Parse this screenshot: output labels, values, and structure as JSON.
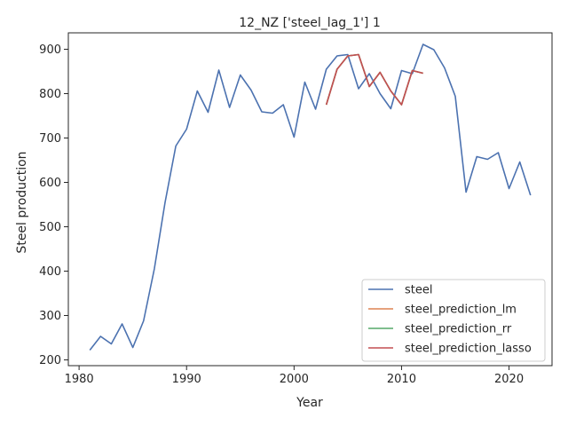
{
  "chart_data": {
    "type": "line",
    "title": "12_NZ ['steel_lag_1'] 1",
    "xlabel": "Year",
    "ylabel": "Steel production",
    "xlim": [
      1979,
      2024
    ],
    "ylim": [
      187,
      937
    ],
    "xticks": [
      1980,
      1990,
      2000,
      2010,
      2020
    ],
    "yticks": [
      200,
      300,
      400,
      500,
      600,
      700,
      800,
      900
    ],
    "grid": false,
    "legend_position": "lower right",
    "series": [
      {
        "name": "steel",
        "color": "#4c72b0",
        "x": [
          1981,
          1982,
          1983,
          1984,
          1985,
          1986,
          1987,
          1988,
          1989,
          1990,
          1991,
          1992,
          1993,
          1994,
          1995,
          1996,
          1997,
          1998,
          1999,
          2000,
          2001,
          2002,
          2003,
          2004,
          2005,
          2006,
          2007,
          2008,
          2009,
          2010,
          2011,
          2012,
          2013,
          2014,
          2015,
          2016,
          2017,
          2018,
          2019,
          2020,
          2021,
          2022
        ],
        "y": [
          222,
          253,
          236,
          281,
          228,
          288,
          405,
          555,
          682,
          720,
          806,
          758,
          853,
          769,
          842,
          808,
          759,
          756,
          775,
          702,
          826,
          765,
          855,
          885,
          888,
          811,
          845,
          800,
          766,
          852,
          845,
          911,
          899,
          858,
          794,
          578,
          658,
          652,
          667,
          586,
          646,
          571
        ]
      },
      {
        "name": "steel_prediction_lm",
        "color": "#dd8452",
        "x": [
          2003,
          2004,
          2005,
          2006,
          2007,
          2008,
          2009,
          2010,
          2011,
          2012
        ],
        "y": [
          775,
          855,
          885,
          888,
          816,
          848,
          806,
          775,
          852,
          846
        ]
      },
      {
        "name": "steel_prediction_rr",
        "color": "#55a868",
        "x": [
          2003,
          2004,
          2005,
          2006,
          2007,
          2008,
          2009,
          2010,
          2011,
          2012
        ],
        "y": [
          775,
          855,
          885,
          888,
          816,
          848,
          806,
          775,
          852,
          846
        ]
      },
      {
        "name": "steel_prediction_lasso",
        "color": "#c44e52",
        "x": [
          2003,
          2004,
          2005,
          2006,
          2007,
          2008,
          2009,
          2010,
          2011,
          2012
        ],
        "y": [
          775,
          855,
          885,
          888,
          816,
          848,
          806,
          775,
          852,
          846
        ]
      }
    ]
  }
}
